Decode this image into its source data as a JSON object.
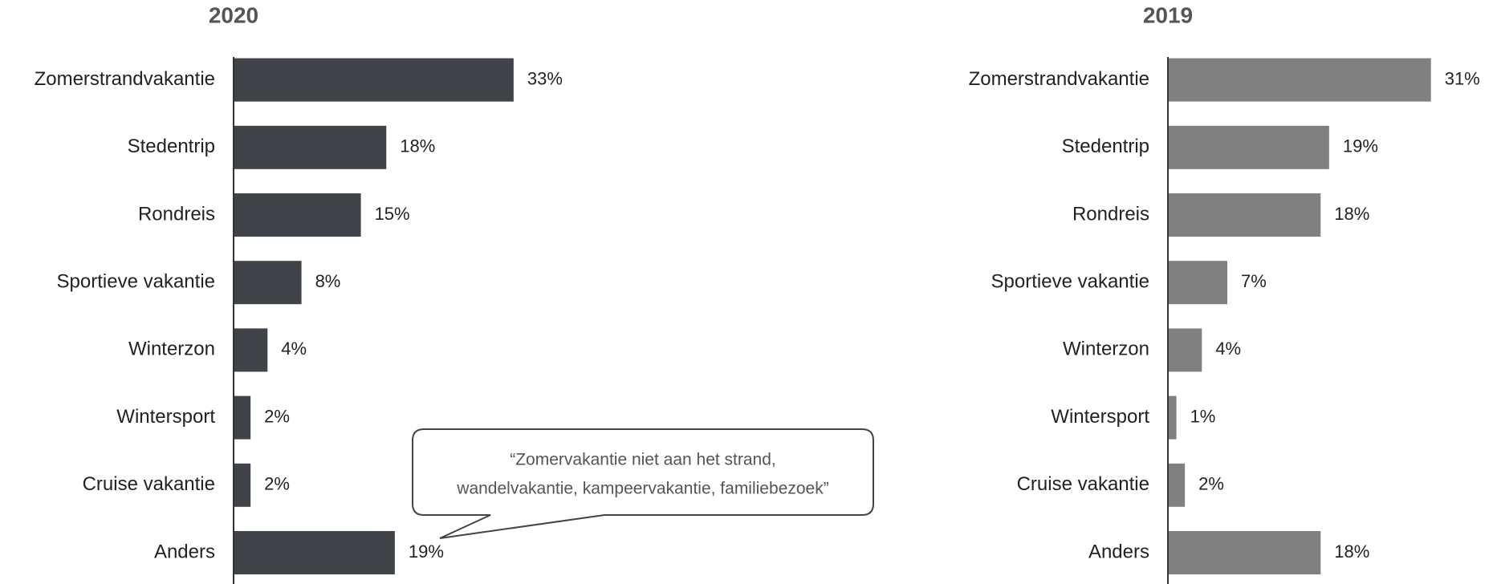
{
  "chart_data": [
    {
      "type": "bar",
      "orientation": "horizontal",
      "title": "2020",
      "color": "#404348",
      "categories": [
        "Zomerstrandvakantie",
        "Stedentrip",
        "Rondreis",
        "Sportieve vakantie",
        "Winterzon",
        "Wintersport",
        "Cruise vakantie",
        "Anders"
      ],
      "values": [
        33,
        18,
        15,
        8,
        4,
        2,
        2,
        19
      ],
      "value_labels": [
        "33%",
        "18%",
        "15%",
        "8%",
        "4%",
        "2%",
        "2%",
        "19%"
      ],
      "xlim": [
        0,
        35
      ],
      "annotation": [
        "“Zomervakantie niet aan het strand,",
        "wandelvakantie, kampeervakantie, familiebezoek”"
      ]
    },
    {
      "type": "bar",
      "orientation": "horizontal",
      "title": "2019",
      "color": "#808080",
      "categories": [
        "Zomerstrandvakantie",
        "Stedentrip",
        "Rondreis",
        "Sportieve vakantie",
        "Winterzon",
        "Wintersport",
        "Cruise vakantie",
        "Anders"
      ],
      "values": [
        31,
        19,
        18,
        7,
        4,
        1,
        2,
        18
      ],
      "value_labels": [
        "31%",
        "19%",
        "18%",
        "7%",
        "4%",
        "1%",
        "2%",
        "18%"
      ],
      "xlim": [
        0,
        35
      ]
    }
  ]
}
